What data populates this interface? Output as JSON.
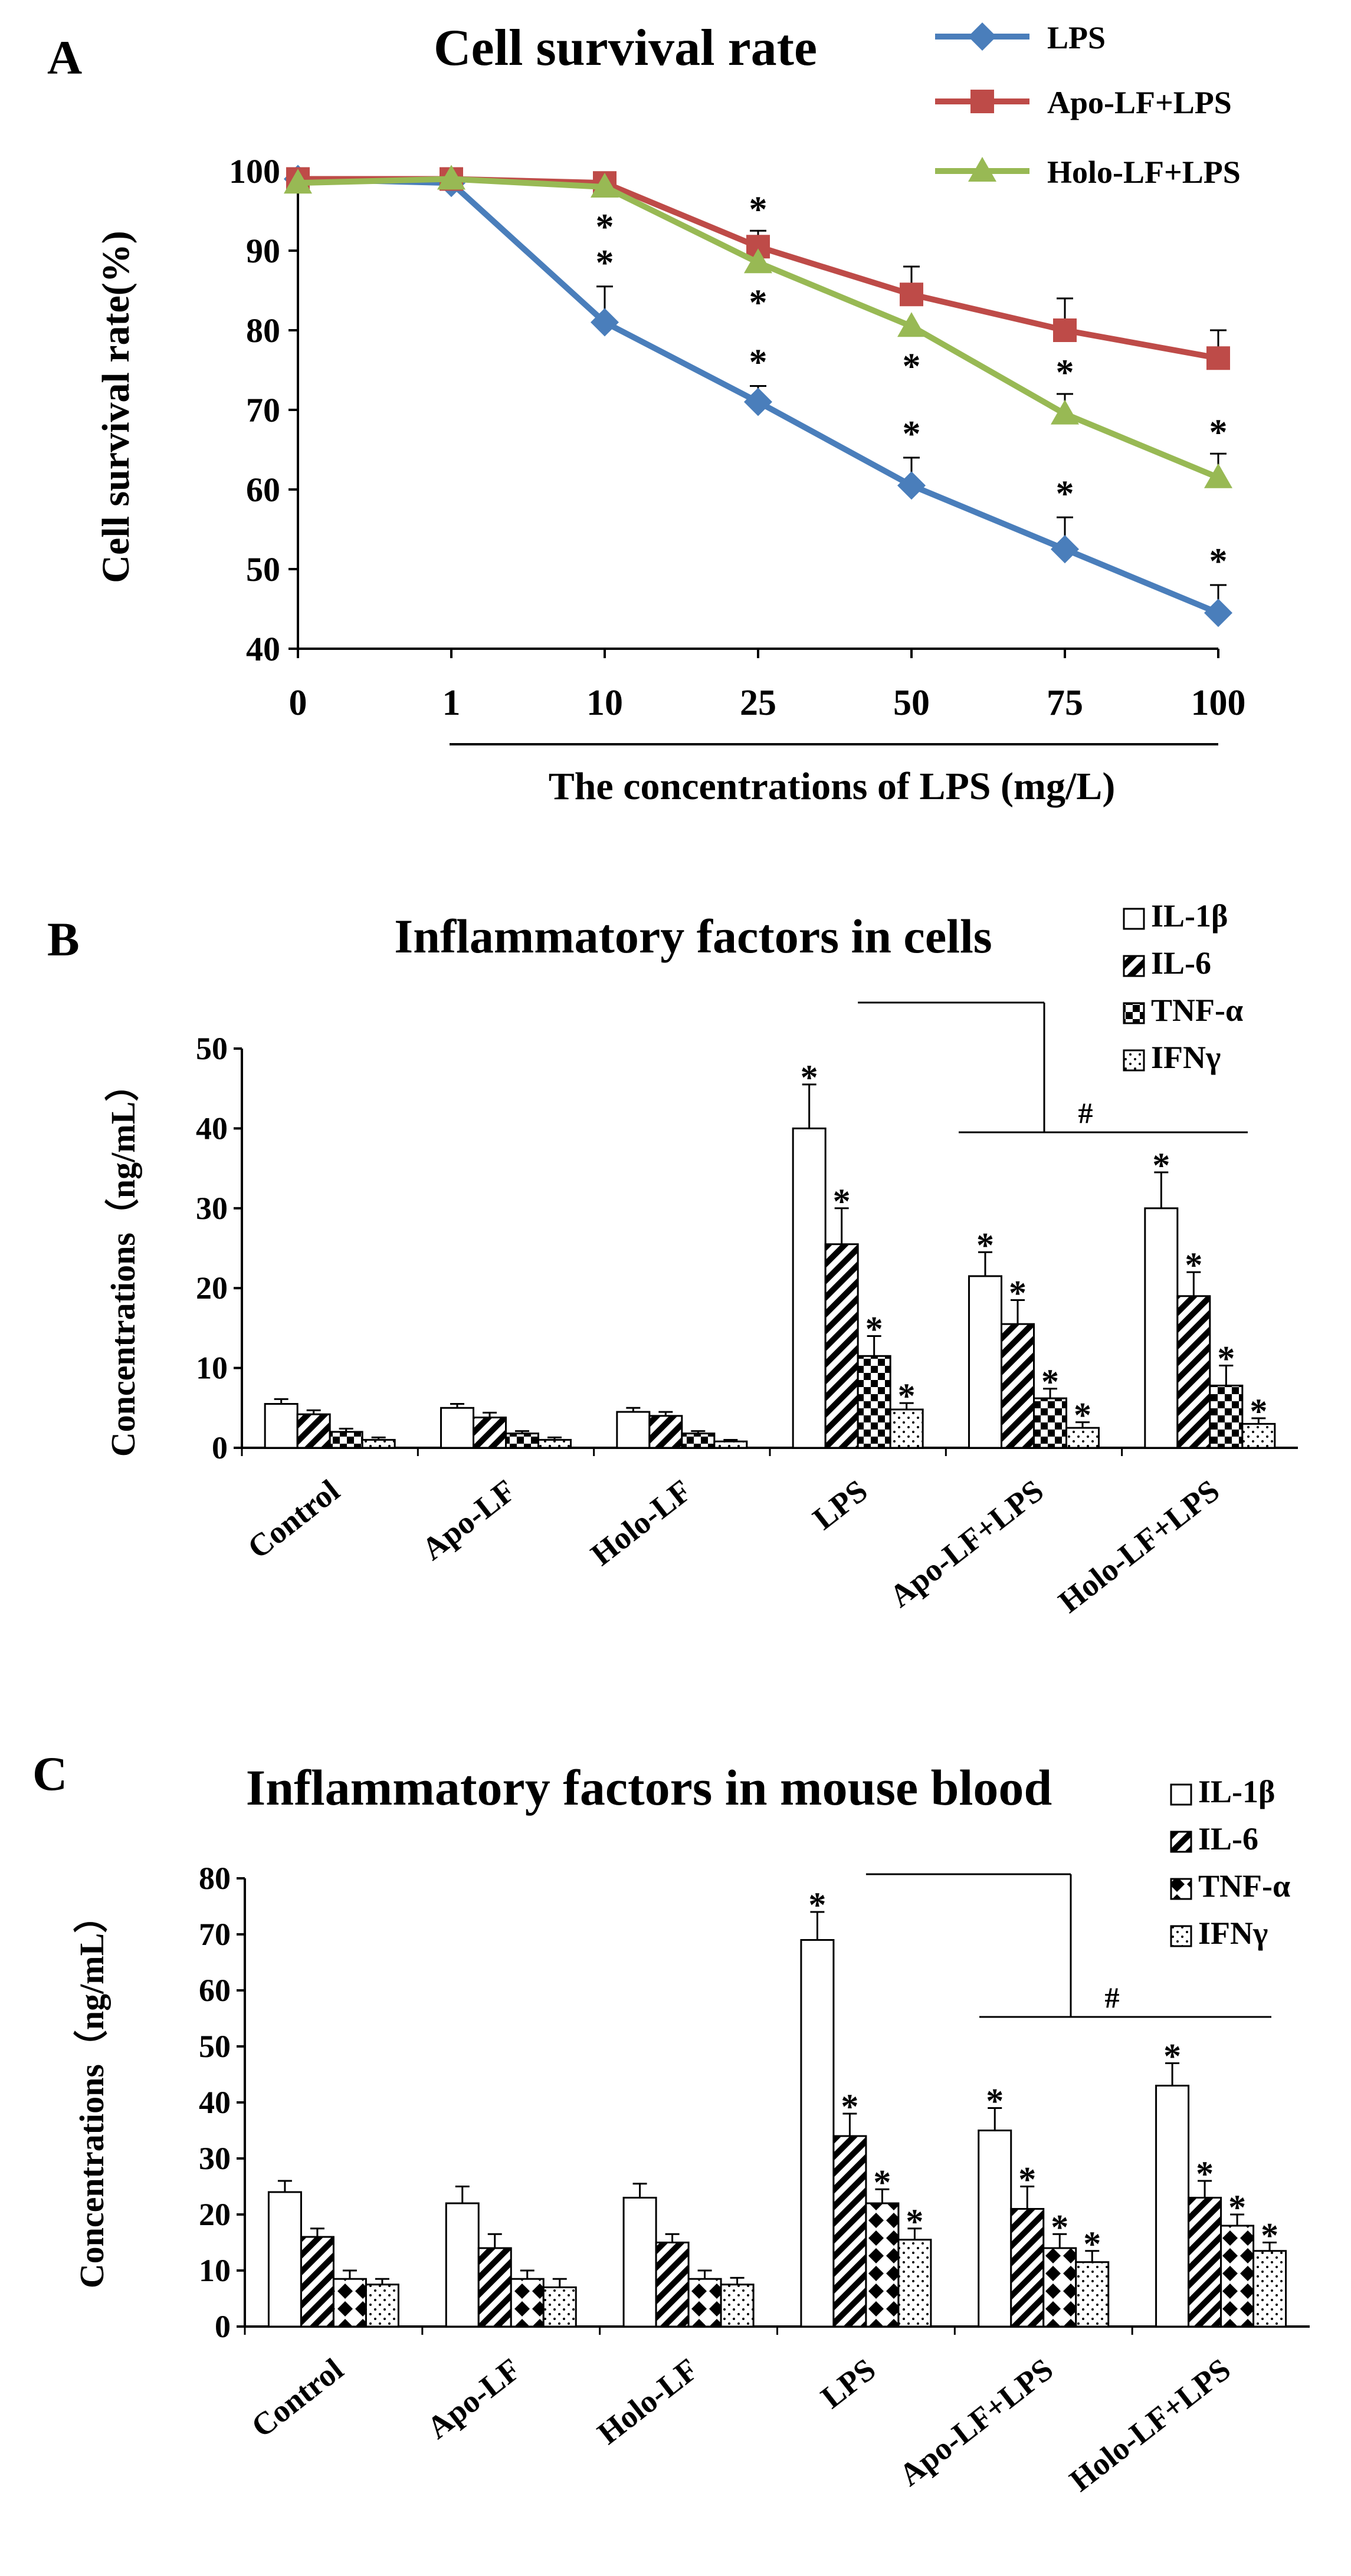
{
  "chart_data": [
    {
      "panel": "A",
      "type": "line",
      "title": "Cell survival rate",
      "xlabel": "The concentrations of LPS (mg/L)",
      "ylabel": "Cell survival rate(%)",
      "ylim": [
        40,
        100
      ],
      "yticks": [
        "40",
        "50",
        "60",
        "70",
        "80",
        "90",
        "100"
      ],
      "categories": [
        "0",
        "1",
        "10",
        "25",
        "50",
        "75",
        "100"
      ],
      "series": [
        {
          "name": "LPS",
          "color": "#4a7ebb",
          "marker": "diamond",
          "values": [
            99,
            98.5,
            81,
            71,
            60.5,
            52.5,
            44.5
          ],
          "errors": [
            0,
            0,
            4.5,
            2,
            3.5,
            4,
            3.5
          ],
          "stars": [
            false,
            false,
            true,
            true,
            true,
            true,
            true
          ]
        },
        {
          "name": "Apo-LF+LPS",
          "color": "#be4b48",
          "marker": "square",
          "values": [
            99,
            99,
            98.5,
            90.5,
            84.5,
            80,
            76.5
          ],
          "errors": [
            0,
            0,
            0,
            2,
            3.5,
            4,
            3.5
          ],
          "stars": [
            false,
            false,
            false,
            true,
            false,
            false,
            false
          ]
        },
        {
          "name": "Holo-LF+LPS",
          "color": "#98b954",
          "marker": "triangle",
          "values": [
            98.5,
            99,
            98,
            88.5,
            80.5,
            69.5,
            61.5
          ],
          "errors": [
            0,
            0,
            0,
            0,
            0,
            2.5,
            3
          ],
          "stars": [
            false,
            false,
            true,
            true,
            true,
            true,
            true
          ]
        }
      ],
      "star_symbol": "*"
    },
    {
      "panel": "B",
      "type": "bar",
      "title": "Inflammatory factors in cells",
      "ylabel": "Concentrations（ng/mL）",
      "ylim": [
        0,
        50
      ],
      "yticks": [
        "0",
        "10",
        "20",
        "30",
        "40",
        "50"
      ],
      "categories": [
        "Control",
        "Apo-LF",
        "Holo-LF",
        "LPS",
        "Apo-LF+LPS",
        "Holo-LF+LPS"
      ],
      "series": [
        {
          "name": "IL-1β",
          "pattern": "white",
          "values": [
            5.5,
            5,
            4.5,
            40,
            21.5,
            30
          ],
          "errors": [
            0.6,
            0.5,
            0.5,
            5.5,
            3,
            4.5
          ],
          "stars": [
            false,
            false,
            false,
            true,
            true,
            true
          ]
        },
        {
          "name": "IL-6",
          "pattern": "diag",
          "values": [
            4.2,
            3.8,
            4,
            25.5,
            15.5,
            19
          ],
          "errors": [
            0.5,
            0.6,
            0.5,
            4.5,
            3,
            3
          ],
          "stars": [
            false,
            false,
            false,
            true,
            true,
            true
          ]
        },
        {
          "name": "TNF-α",
          "pattern": "checker",
          "values": [
            2,
            1.8,
            1.8,
            11.5,
            6.2,
            7.8
          ],
          "errors": [
            0.4,
            0.3,
            0.3,
            2.5,
            1.2,
            2.5
          ],
          "stars": [
            false,
            false,
            false,
            true,
            true,
            true
          ]
        },
        {
          "name": "IFNγ",
          "pattern": "dots",
          "values": [
            1,
            1,
            0.8,
            4.8,
            2.5,
            3
          ],
          "errors": [
            0.3,
            0.3,
            0.2,
            0.8,
            0.7,
            0.7
          ],
          "stars": [
            false,
            false,
            false,
            true,
            true,
            true
          ]
        }
      ],
      "significance_mark": "#",
      "star_symbol": "*"
    },
    {
      "panel": "C",
      "type": "bar",
      "title": "Inflammatory factors in mouse blood",
      "ylabel": "Concentrations（ng/mL）",
      "ylim": [
        0,
        80
      ],
      "yticks": [
        "0",
        "10",
        "20",
        "30",
        "40",
        "50",
        "60",
        "70",
        "80"
      ],
      "categories": [
        "Control",
        "Apo-LF",
        "Holo-LF",
        "LPS",
        "Apo-LF+LPS",
        "Holo-LF+LPS"
      ],
      "series": [
        {
          "name": "IL-1β",
          "pattern": "white",
          "values": [
            24,
            22,
            23,
            69,
            35,
            43
          ],
          "errors": [
            2,
            3,
            2.5,
            5,
            4,
            4
          ],
          "stars": [
            false,
            false,
            false,
            true,
            true,
            true
          ]
        },
        {
          "name": "IL-6",
          "pattern": "diag",
          "values": [
            16,
            14,
            15,
            34,
            21,
            23
          ],
          "errors": [
            1.5,
            2.5,
            1.5,
            4,
            4,
            3
          ],
          "stars": [
            false,
            false,
            false,
            true,
            true,
            true
          ]
        },
        {
          "name": "TNF-α",
          "pattern": "diamond",
          "values": [
            8.5,
            8.5,
            8.5,
            22,
            14,
            18
          ],
          "errors": [
            1.5,
            1.5,
            1.5,
            2.5,
            2.5,
            2
          ],
          "stars": [
            false,
            false,
            false,
            true,
            true,
            true
          ]
        },
        {
          "name": "IFNγ",
          "pattern": "dots",
          "values": [
            7.5,
            7,
            7.5,
            15.5,
            11.5,
            13.5
          ],
          "errors": [
            1,
            1.5,
            1.2,
            2,
            2,
            1.5
          ],
          "stars": [
            false,
            false,
            false,
            true,
            true,
            true
          ]
        }
      ],
      "significance_mark": "#",
      "star_symbol": "*"
    }
  ],
  "panel_labels": [
    "A",
    "B",
    "C"
  ]
}
